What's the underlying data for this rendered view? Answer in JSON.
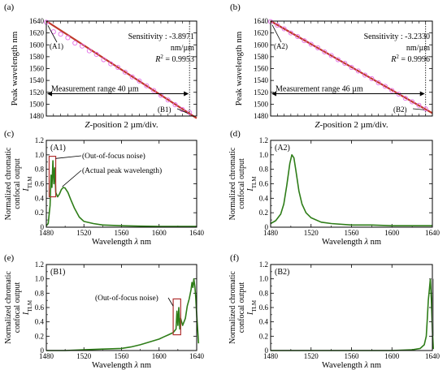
{
  "chart_data": [
    {
      "type": "scatter",
      "panel_label": "(a)",
      "ylabel": "Peak wavelength  nm",
      "xlabel_italic": "Z",
      "xlabel_rest": "-position 2 µm/div.",
      "ylim": [
        1480,
        1640
      ],
      "yticks": [
        "1640",
        "1620",
        "1600",
        "1580",
        "1560",
        "1540",
        "1520",
        "1500",
        "1480"
      ],
      "xlim": [
        0,
        42
      ],
      "sensitivity_line1": "Sensitivity : -3.8971",
      "sensitivity_line2": "nm/µm",
      "r2_label": "R",
      "r2_value": "= 0.9953",
      "range_label": "Measurement range 40 µm",
      "range_x": [
        0,
        40
      ],
      "point_start_label": "(A1)",
      "point_end_label": "(B1)",
      "fit": {
        "slope": -3.8971,
        "intercept": 1640
      },
      "x": [
        0,
        2,
        4,
        6,
        8,
        10,
        12,
        14,
        16,
        18,
        20,
        22,
        24,
        26,
        28,
        30,
        32,
        34,
        36,
        38,
        40
      ],
      "y": [
        1638,
        1622,
        1618,
        1612,
        1603,
        1598,
        1590,
        1584,
        1575,
        1568,
        1562,
        1554,
        1546,
        1539,
        1531,
        1523,
        1515,
        1507,
        1499,
        1491,
        1486
      ],
      "colors": {
        "fit": "#c0392b",
        "marker": "#e36ee8"
      }
    },
    {
      "type": "scatter",
      "panel_label": "(b)",
      "ylabel": "Peak wavelength  nm",
      "xlabel_italic": "Z",
      "xlabel_rest": "-position 2 µm/div.",
      "ylim": [
        1480,
        1640
      ],
      "yticks": [
        "1640",
        "1620",
        "1600",
        "1580",
        "1560",
        "1540",
        "1520",
        "1500",
        "1480"
      ],
      "xlim": [
        0,
        48
      ],
      "sensitivity_line1": "Sensitivity : -3.2330",
      "sensitivity_line2": "nm/µm",
      "r2_label": "R",
      "r2_value": "= 0.9996",
      "range_label": "Measurement range 46 µm",
      "range_x": [
        0,
        46
      ],
      "point_start_label": "(A2)",
      "point_end_label": "(B2)",
      "fit": {
        "slope": -3.233,
        "intercept": 1640
      },
      "x": [
        0,
        2,
        4,
        6,
        8,
        10,
        12,
        14,
        16,
        18,
        20,
        22,
        24,
        26,
        28,
        30,
        32,
        34,
        36,
        38,
        40,
        42,
        44,
        46
      ],
      "y": [
        1639,
        1633,
        1627,
        1620,
        1614,
        1607,
        1601,
        1595,
        1588,
        1582,
        1575,
        1569,
        1562,
        1556,
        1549,
        1543,
        1536,
        1530,
        1523,
        1517,
        1510,
        1504,
        1498,
        1492
      ],
      "colors": {
        "fit": "#c0392b",
        "marker": "#e36ee8"
      }
    },
    {
      "type": "line",
      "panel_label": "(c)",
      "inner_label": "(A1)",
      "ylabel_line1": "Normalized chromatic",
      "ylabel_line2": "confocal output",
      "ylabel_sym": "I",
      "ylabel_sub": "TLM",
      "xlabel": "Wavelength",
      "xlabel_sym": "λ",
      "xlabel_unit": "nm",
      "xlim": [
        1480,
        1640
      ],
      "ylim": [
        0,
        1.2
      ],
      "xticks": [
        "1480",
        "1520",
        "1560",
        "1600",
        "1640"
      ],
      "yticks": [
        "0",
        "0.2",
        "0.4",
        "0.6",
        "0.8",
        "1.0",
        "1.2"
      ],
      "annotations": [
        "(Out-of-focus noise)",
        "(Actual peak wavelength)"
      ],
      "color": "#2e7d18",
      "x": [
        1480,
        1482,
        1484,
        1485,
        1486,
        1487,
        1488,
        1489,
        1490,
        1492,
        1494,
        1496,
        1498,
        1500,
        1503,
        1506,
        1510,
        1515,
        1520,
        1530,
        1540,
        1560,
        1580,
        1600,
        1620,
        1640
      ],
      "y": [
        0.02,
        0.05,
        0.3,
        0.72,
        0.55,
        0.92,
        0.6,
        0.82,
        0.48,
        0.42,
        0.46,
        0.52,
        0.55,
        0.54,
        0.48,
        0.38,
        0.26,
        0.14,
        0.08,
        0.05,
        0.03,
        0.02,
        0.015,
        0.01,
        0.01,
        0.01
      ]
    },
    {
      "type": "line",
      "panel_label": "(d)",
      "inner_label": "(A2)",
      "ylabel_line1": "Normalized chromatic",
      "ylabel_line2": "confocal output",
      "ylabel_sym": "I",
      "ylabel_sub": "TLM",
      "xlabel": "Wavelength",
      "xlabel_sym": "λ",
      "xlabel_unit": "nm",
      "xlim": [
        1480,
        1640
      ],
      "ylim": [
        0,
        1.2
      ],
      "xticks": [
        "1480",
        "1520",
        "1560",
        "1600",
        "1640"
      ],
      "yticks": [
        "0",
        "0.2",
        "0.4",
        "0.6",
        "0.8",
        "1.0",
        "1.2"
      ],
      "color": "#2e7d18",
      "x": [
        1480,
        1485,
        1490,
        1493,
        1496,
        1499,
        1501,
        1503,
        1505,
        1508,
        1511,
        1515,
        1520,
        1530,
        1540,
        1560,
        1580,
        1600,
        1620,
        1640
      ],
      "y": [
        0.05,
        0.09,
        0.18,
        0.32,
        0.58,
        0.88,
        1.0,
        0.96,
        0.78,
        0.5,
        0.32,
        0.2,
        0.13,
        0.07,
        0.05,
        0.03,
        0.03,
        0.02,
        0.02,
        0.02
      ]
    },
    {
      "type": "line",
      "panel_label": "(e)",
      "inner_label": "(B1)",
      "ylabel_line1": "Normalized chromatic",
      "ylabel_line2": "confocal output",
      "ylabel_sym": "I",
      "ylabel_sub": "TLM",
      "xlabel": "Wavelength",
      "xlabel_sym": "λ",
      "xlabel_unit": "nm",
      "xlim": [
        1480,
        1640
      ],
      "ylim": [
        0,
        1.2
      ],
      "xticks": [
        "1480",
        "1520",
        "1560",
        "1600",
        "1640"
      ],
      "yticks": [
        "0",
        "0.2",
        "0.4",
        "0.6",
        "0.8",
        "1.0",
        "1.2"
      ],
      "annotations": [
        "(Out-of-focus noise)"
      ],
      "color": "#2e7d18",
      "x": [
        1480,
        1500,
        1520,
        1540,
        1560,
        1570,
        1580,
        1590,
        1600,
        1605,
        1610,
        1615,
        1618,
        1619,
        1620,
        1621,
        1622,
        1623,
        1625,
        1628,
        1630,
        1632,
        1634,
        1635,
        1636,
        1637,
        1638,
        1639,
        1640,
        1641,
        1642
      ],
      "y": [
        0.0,
        0.0,
        0.01,
        0.02,
        0.03,
        0.05,
        0.08,
        0.12,
        0.16,
        0.19,
        0.22,
        0.25,
        0.3,
        0.55,
        0.35,
        0.6,
        0.3,
        0.45,
        0.35,
        0.45,
        0.62,
        0.72,
        0.85,
        0.95,
        0.88,
        1.0,
        0.9,
        0.75,
        0.5,
        0.3,
        0.1
      ]
    },
    {
      "type": "line",
      "panel_label": "(f)",
      "inner_label": "(B2)",
      "ylabel_line1": "Normalized chromatic",
      "ylabel_line2": "confocal output",
      "ylabel_sym": "I",
      "ylabel_sub": "TLM",
      "xlabel": "Wavelength",
      "xlabel_sym": "λ",
      "xlabel_unit": "nm",
      "xlim": [
        1480,
        1640
      ],
      "ylim": [
        0,
        1.2
      ],
      "xticks": [
        "1480",
        "1520",
        "1560",
        "1600",
        "1640"
      ],
      "yticks": [
        "0",
        "0.2",
        "0.4",
        "0.6",
        "0.8",
        "1.0",
        "1.2"
      ],
      "color": "#2e7d18",
      "x": [
        1480,
        1560,
        1600,
        1620,
        1628,
        1632,
        1634,
        1635,
        1636,
        1637,
        1638,
        1639,
        1640,
        1641
      ],
      "y": [
        0.0,
        0.0,
        0.0,
        0.01,
        0.03,
        0.08,
        0.2,
        0.45,
        0.7,
        0.85,
        1.0,
        0.7,
        0.3,
        0.02
      ]
    }
  ]
}
